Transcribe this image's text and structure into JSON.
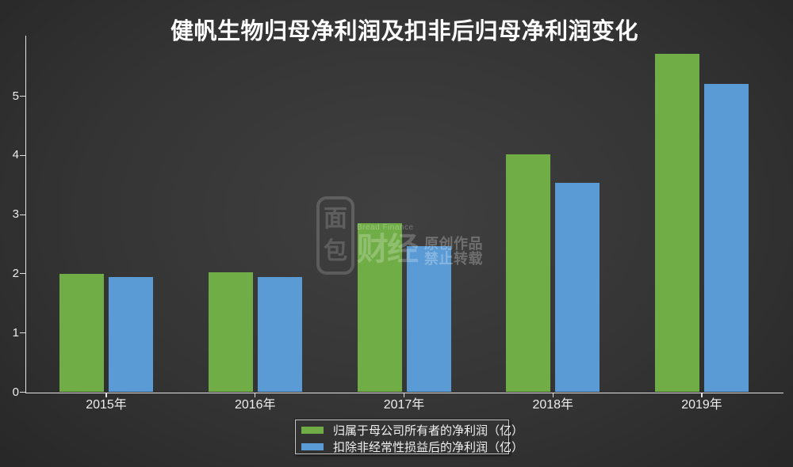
{
  "title": "健帆生物归母净利润及扣非后归母净利润变化",
  "watermark": {
    "logo_top": "面",
    "logo_bottom": "包",
    "brand_en": "Bread Finance",
    "brand_cn": "财经",
    "notice_line1": "原创作品",
    "notice_line2": "禁止转载"
  },
  "colors": {
    "green": "#70ad47",
    "blue": "#5b9bd5",
    "axis": "#e2e2e2",
    "text": "#ededed",
    "title_text": "#ffffff"
  },
  "chart_data": {
    "type": "bar",
    "title": "健帆生物归母净利润及扣非后归母净利润变化",
    "categories": [
      "2015年",
      "2016年",
      "2017年",
      "2018年",
      "2019年"
    ],
    "series": [
      {
        "name": "归属于母公司所有者的净利润（亿）",
        "color": "#70ad47",
        "values": [
          2.0,
          2.03,
          2.85,
          4.02,
          5.71
        ]
      },
      {
        "name": "扣除非经常性损益后的净利润（亿）",
        "color": "#5b9bd5",
        "values": [
          1.94,
          1.94,
          2.46,
          3.53,
          5.21
        ]
      }
    ],
    "xlabel": "",
    "ylabel": "",
    "ylim": [
      0,
      6
    ],
    "yticks": [
      0,
      1,
      2,
      3,
      4,
      5
    ],
    "grid": false,
    "legend_position": "bottom"
  }
}
